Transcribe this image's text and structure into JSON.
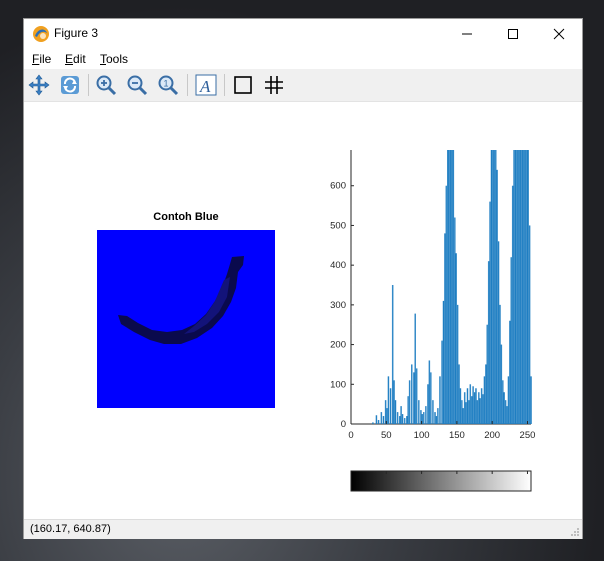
{
  "window": {
    "title": "Figure 3",
    "controls": [
      "minimize-icon",
      "maximize-icon",
      "close-icon"
    ]
  },
  "menu": {
    "items": [
      "File",
      "Edit",
      "Tools"
    ]
  },
  "toolbar": {
    "buttons": [
      "pan-icon",
      "rotate-icon",
      "zoom-in-icon",
      "zoom-out-icon",
      "zoom-reset-icon",
      "text-icon",
      "box-icon",
      "grid-icon"
    ]
  },
  "figure": {
    "image_title": "Contoh Blue",
    "colors": {
      "image_bg": "#0000ff",
      "banana_dark": "#0a0a5a",
      "bar": "#1f7ec2"
    }
  },
  "chart_data": {
    "type": "bar",
    "x_range": [
      0,
      255
    ],
    "xlim": [
      0,
      255
    ],
    "ylim": [
      0,
      690
    ],
    "xticks": [
      0,
      50,
      100,
      150,
      200,
      250
    ],
    "yticks": [
      0,
      100,
      200,
      300,
      400,
      500,
      600
    ],
    "grid": false,
    "colorbar": "grayscale 0-255 below x-axis",
    "peaks_note_values": [
      {
        "x": 58,
        "y": 350
      },
      {
        "x": 91,
        "y": 278
      },
      {
        "x": 137,
        "y": 690
      },
      {
        "x": 145,
        "y": 690
      },
      {
        "x": 205,
        "y": 690
      },
      {
        "x": 240,
        "y": 690
      }
    ],
    "bins_x": [
      30,
      35,
      38,
      42,
      45,
      48,
      50,
      52,
      55,
      58,
      60,
      62,
      65,
      68,
      70,
      72,
      75,
      78,
      80,
      82,
      85,
      88,
      90,
      92,
      95,
      98,
      100,
      102,
      105,
      108,
      110,
      112,
      115,
      118,
      120,
      122,
      125,
      128,
      130,
      132,
      134,
      136,
      138,
      140,
      142,
      144,
      146,
      148,
      150,
      152,
      154,
      156,
      158,
      160,
      162,
      164,
      166,
      168,
      170,
      172,
      174,
      176,
      178,
      180,
      182,
      184,
      186,
      188,
      190,
      192,
      194,
      196,
      198,
      200,
      202,
      204,
      206,
      208,
      210,
      212,
      214,
      216,
      218,
      220,
      222,
      224,
      226,
      228,
      230,
      232,
      234,
      236,
      238,
      240,
      242,
      244,
      246,
      248,
      250,
      252,
      254
    ],
    "bins_y": [
      4,
      22,
      10,
      30,
      20,
      60,
      40,
      120,
      90,
      350,
      110,
      60,
      30,
      20,
      45,
      25,
      15,
      20,
      70,
      110,
      150,
      130,
      278,
      140,
      60,
      35,
      25,
      30,
      45,
      100,
      160,
      130,
      60,
      30,
      20,
      40,
      120,
      210,
      310,
      480,
      600,
      690,
      690,
      690,
      690,
      690,
      520,
      430,
      300,
      150,
      90,
      60,
      40,
      80,
      55,
      90,
      60,
      100,
      70,
      95,
      80,
      90,
      60,
      80,
      65,
      90,
      75,
      120,
      150,
      250,
      410,
      560,
      690,
      690,
      690,
      690,
      640,
      460,
      300,
      200,
      110,
      80,
      60,
      45,
      120,
      260,
      420,
      600,
      690,
      690,
      690,
      690,
      690,
      690,
      690,
      690,
      690,
      690,
      690,
      500,
      120
    ],
    "xlabel": "",
    "ylabel": "",
    "title": ""
  },
  "status": {
    "coordinates": "(160.17, 640.87)"
  }
}
